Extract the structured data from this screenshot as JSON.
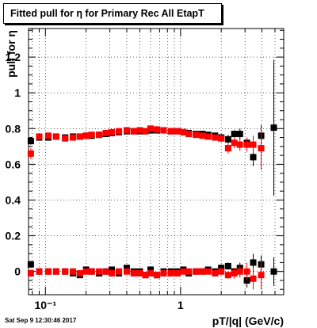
{
  "title": "Fitted pull for  η for Primary Rec All EtapT",
  "footer": "Sat Sep  9 12:30:46 2017",
  "chart_data": {
    "type": "scatter",
    "xlabel": "pT/|q| (GeV/c)",
    "ylabel": "pull for  η",
    "xscale": "log",
    "xlim": [
      0.075,
      5.8
    ],
    "ylim": [
      -0.13,
      1.36
    ],
    "grid": true,
    "x_ticks": [
      {
        "value": 0.1,
        "label": "10⁻¹"
      },
      {
        "value": 1,
        "label": "1"
      }
    ],
    "y_ticks": [
      {
        "value": 0,
        "label": "0"
      },
      {
        "value": 0.2,
        "label": "0.2"
      },
      {
        "value": 0.4,
        "label": "0.4"
      },
      {
        "value": 0.6,
        "label": "0.6"
      },
      {
        "value": 0.8,
        "label": "0.8"
      },
      {
        "value": 1,
        "label": "1"
      },
      {
        "value": 1.2,
        "label": "1.2"
      }
    ],
    "colors": {
      "black_series": "#000000",
      "red_series": "#ff0000"
    },
    "series": [
      {
        "color": "#000000",
        "points": [
          [
            0.078,
            0.73,
            0.02
          ],
          [
            0.09,
            0.75,
            0.01
          ],
          [
            0.105,
            0.75,
            0.01
          ],
          [
            0.12,
            0.755,
            0.01
          ],
          [
            0.14,
            0.75,
            0.01
          ],
          [
            0.16,
            0.755,
            0.01
          ],
          [
            0.18,
            0.755,
            0.01
          ],
          [
            0.2,
            0.76,
            0.01
          ],
          [
            0.22,
            0.76,
            0.01
          ],
          [
            0.25,
            0.765,
            0.01
          ],
          [
            0.28,
            0.77,
            0.01
          ],
          [
            0.31,
            0.775,
            0.01
          ],
          [
            0.35,
            0.78,
            0.01
          ],
          [
            0.4,
            0.785,
            0.01
          ],
          [
            0.45,
            0.785,
            0.01
          ],
          [
            0.5,
            0.785,
            0.01
          ],
          [
            0.55,
            0.785,
            0.01
          ],
          [
            0.6,
            0.79,
            0.01
          ],
          [
            0.67,
            0.79,
            0.01
          ],
          [
            0.75,
            0.79,
            0.01
          ],
          [
            0.85,
            0.785,
            0.01
          ],
          [
            0.95,
            0.785,
            0.01
          ],
          [
            1.05,
            0.78,
            0.01
          ],
          [
            1.15,
            0.775,
            0.01
          ],
          [
            1.3,
            0.77,
            0.01
          ],
          [
            1.45,
            0.77,
            0.01
          ],
          [
            1.6,
            0.765,
            0.015
          ],
          [
            1.8,
            0.76,
            0.015
          ],
          [
            2.0,
            0.75,
            0.02
          ],
          [
            2.25,
            0.74,
            0.025
          ],
          [
            2.5,
            0.77,
            0.02
          ],
          [
            2.75,
            0.77,
            0.03
          ],
          [
            3.1,
            0.72,
            0.03
          ],
          [
            3.45,
            0.64,
            0.05
          ],
          [
            3.95,
            0.76,
            0.06
          ],
          [
            4.9,
            0.805,
            0.38
          ],
          [
            0.078,
            0.04,
            0.02
          ],
          [
            0.09,
            0.0,
            0.01
          ],
          [
            0.105,
            0.0,
            0.01
          ],
          [
            0.12,
            0.0,
            0.01
          ],
          [
            0.14,
            0.0,
            0.01
          ],
          [
            0.16,
            -0.01,
            0.01
          ],
          [
            0.18,
            -0.02,
            0.01
          ],
          [
            0.2,
            0.01,
            0.01
          ],
          [
            0.22,
            0.0,
            0.01
          ],
          [
            0.25,
            -0.01,
            0.01
          ],
          [
            0.28,
            0.0,
            0.01
          ],
          [
            0.31,
            0.01,
            0.01
          ],
          [
            0.35,
            -0.01,
            0.01
          ],
          [
            0.4,
            0.02,
            0.01
          ],
          [
            0.45,
            0.0,
            0.01
          ],
          [
            0.5,
            0.0,
            0.01
          ],
          [
            0.55,
            -0.02,
            0.01
          ],
          [
            0.6,
            0.01,
            0.01
          ],
          [
            0.67,
            -0.02,
            0.01
          ],
          [
            0.75,
            0.0,
            0.01
          ],
          [
            0.85,
            0.0,
            0.01
          ],
          [
            0.95,
            0.0,
            0.01
          ],
          [
            1.05,
            0.01,
            0.01
          ],
          [
            1.15,
            -0.01,
            0.01
          ],
          [
            1.3,
            0.0,
            0.01
          ],
          [
            1.45,
            0.0,
            0.01
          ],
          [
            1.6,
            0.01,
            0.015
          ],
          [
            1.8,
            0.0,
            0.015
          ],
          [
            2.0,
            0.02,
            0.02
          ],
          [
            2.25,
            0.03,
            0.02
          ],
          [
            2.5,
            0.0,
            0.02
          ],
          [
            2.75,
            0.02,
            0.03
          ],
          [
            3.1,
            -0.05,
            0.04
          ],
          [
            3.45,
            0.05,
            0.05
          ],
          [
            3.95,
            0.04,
            0.05
          ],
          [
            4.9,
            0.0,
            0.08
          ]
        ]
      },
      {
        "color": "#ff0000",
        "points": [
          [
            0.078,
            0.66,
            0.03
          ],
          [
            0.09,
            0.755,
            0.015
          ],
          [
            0.105,
            0.76,
            0.01
          ],
          [
            0.12,
            0.755,
            0.01
          ],
          [
            0.14,
            0.745,
            0.01
          ],
          [
            0.16,
            0.75,
            0.01
          ],
          [
            0.18,
            0.755,
            0.01
          ],
          [
            0.2,
            0.76,
            0.01
          ],
          [
            0.22,
            0.765,
            0.01
          ],
          [
            0.25,
            0.765,
            0.01
          ],
          [
            0.28,
            0.775,
            0.01
          ],
          [
            0.31,
            0.78,
            0.01
          ],
          [
            0.35,
            0.785,
            0.01
          ],
          [
            0.4,
            0.79,
            0.01
          ],
          [
            0.45,
            0.785,
            0.01
          ],
          [
            0.5,
            0.79,
            0.01
          ],
          [
            0.55,
            0.785,
            0.01
          ],
          [
            0.6,
            0.8,
            0.01
          ],
          [
            0.67,
            0.795,
            0.01
          ],
          [
            0.75,
            0.79,
            0.01
          ],
          [
            0.85,
            0.785,
            0.01
          ],
          [
            0.95,
            0.785,
            0.01
          ],
          [
            1.05,
            0.78,
            0.01
          ],
          [
            1.15,
            0.77,
            0.01
          ],
          [
            1.3,
            0.765,
            0.01
          ],
          [
            1.45,
            0.76,
            0.01
          ],
          [
            1.6,
            0.755,
            0.015
          ],
          [
            1.8,
            0.75,
            0.015
          ],
          [
            2.0,
            0.745,
            0.02
          ],
          [
            2.25,
            0.69,
            0.03
          ],
          [
            2.5,
            0.72,
            0.03
          ],
          [
            2.75,
            0.71,
            0.035
          ],
          [
            3.1,
            0.71,
            0.04
          ],
          [
            3.45,
            0.71,
            0.05
          ],
          [
            3.95,
            0.69,
            0.12
          ]
        ]
      },
      {
        "color": "#ff0000",
        "points": [
          [
            0.078,
            -0.01,
            0.02
          ],
          [
            0.09,
            0.0,
            0.01
          ],
          [
            0.105,
            0.0,
            0.01
          ],
          [
            0.12,
            0.0,
            0.01
          ],
          [
            0.14,
            0.0,
            0.01
          ],
          [
            0.16,
            0.0,
            0.01
          ],
          [
            0.18,
            -0.01,
            0.01
          ],
          [
            0.2,
            0.0,
            0.01
          ],
          [
            0.22,
            0.0,
            0.01
          ],
          [
            0.25,
            0.0,
            0.01
          ],
          [
            0.28,
            0.0,
            0.01
          ],
          [
            0.31,
            -0.01,
            0.01
          ],
          [
            0.35,
            0.0,
            0.01
          ],
          [
            0.4,
            0.0,
            0.01
          ],
          [
            0.45,
            -0.01,
            0.01
          ],
          [
            0.5,
            -0.01,
            0.01
          ],
          [
            0.55,
            -0.02,
            0.01
          ],
          [
            0.6,
            -0.01,
            0.01
          ],
          [
            0.67,
            -0.02,
            0.01
          ],
          [
            0.75,
            -0.01,
            0.01
          ],
          [
            0.85,
            -0.01,
            0.01
          ],
          [
            0.95,
            -0.01,
            0.01
          ],
          [
            1.05,
            0.0,
            0.01
          ],
          [
            1.15,
            0.0,
            0.01
          ],
          [
            1.3,
            0.0,
            0.01
          ],
          [
            1.45,
            0.0,
            0.01
          ],
          [
            1.6,
            0.0,
            0.015
          ],
          [
            1.8,
            -0.01,
            0.015
          ],
          [
            2.0,
            0.0,
            0.02
          ],
          [
            2.25,
            -0.02,
            0.02
          ],
          [
            2.5,
            -0.01,
            0.03
          ],
          [
            2.75,
            0.0,
            0.035
          ],
          [
            3.1,
            0.0,
            0.05
          ],
          [
            3.45,
            -0.04,
            0.06
          ],
          [
            3.95,
            -0.02,
            0.08
          ]
        ]
      }
    ]
  }
}
